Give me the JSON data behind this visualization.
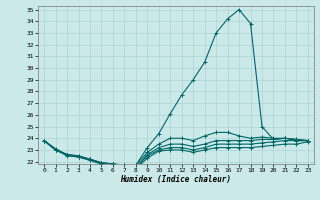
{
  "xlabel": "Humidex (Indice chaleur)",
  "xlim": [
    -0.5,
    23.5
  ],
  "ylim": [
    21.8,
    35.3
  ],
  "yticks": [
    22,
    23,
    24,
    25,
    26,
    27,
    28,
    29,
    30,
    31,
    32,
    33,
    34,
    35
  ],
  "xticks": [
    0,
    1,
    2,
    3,
    4,
    5,
    6,
    7,
    8,
    9,
    10,
    11,
    12,
    13,
    14,
    15,
    16,
    17,
    18,
    19,
    20,
    21,
    22,
    23
  ],
  "background_color": "#cce9e9",
  "grid_color": "#aad4d4",
  "line_color": "#006666",
  "curves": [
    [
      23.8,
      23.1,
      22.6,
      22.5,
      22.2,
      21.9,
      21.8,
      21.7,
      21.7,
      23.2,
      24.4,
      26.1,
      27.7,
      29.0,
      30.5,
      33.0,
      34.2,
      35.0,
      33.8,
      25.0,
      23.9,
      24.0,
      23.8,
      23.8
    ],
    [
      23.8,
      23.0,
      22.6,
      22.5,
      22.2,
      21.9,
      21.8,
      21.7,
      21.7,
      22.8,
      23.5,
      24.0,
      24.0,
      23.8,
      24.2,
      24.5,
      24.5,
      24.2,
      24.0,
      24.1,
      24.0,
      24.0,
      23.9,
      23.8
    ],
    [
      23.8,
      23.0,
      22.6,
      22.4,
      22.2,
      21.9,
      21.8,
      21.6,
      21.5,
      22.6,
      23.2,
      23.5,
      23.5,
      23.3,
      23.5,
      23.8,
      23.8,
      23.8,
      23.8,
      23.9,
      23.9,
      24.0,
      23.9,
      23.8
    ],
    [
      23.8,
      23.0,
      22.6,
      22.4,
      22.2,
      21.9,
      21.8,
      21.6,
      21.5,
      22.5,
      23.0,
      23.2,
      23.2,
      23.0,
      23.2,
      23.5,
      23.5,
      23.5,
      23.5,
      23.6,
      23.7,
      23.8,
      23.8,
      23.8
    ],
    [
      23.8,
      23.0,
      22.5,
      22.4,
      22.1,
      21.8,
      21.7,
      21.5,
      21.4,
      22.3,
      22.9,
      23.0,
      23.0,
      22.8,
      23.0,
      23.2,
      23.2,
      23.2,
      23.2,
      23.3,
      23.4,
      23.5,
      23.5,
      23.7
    ]
  ]
}
